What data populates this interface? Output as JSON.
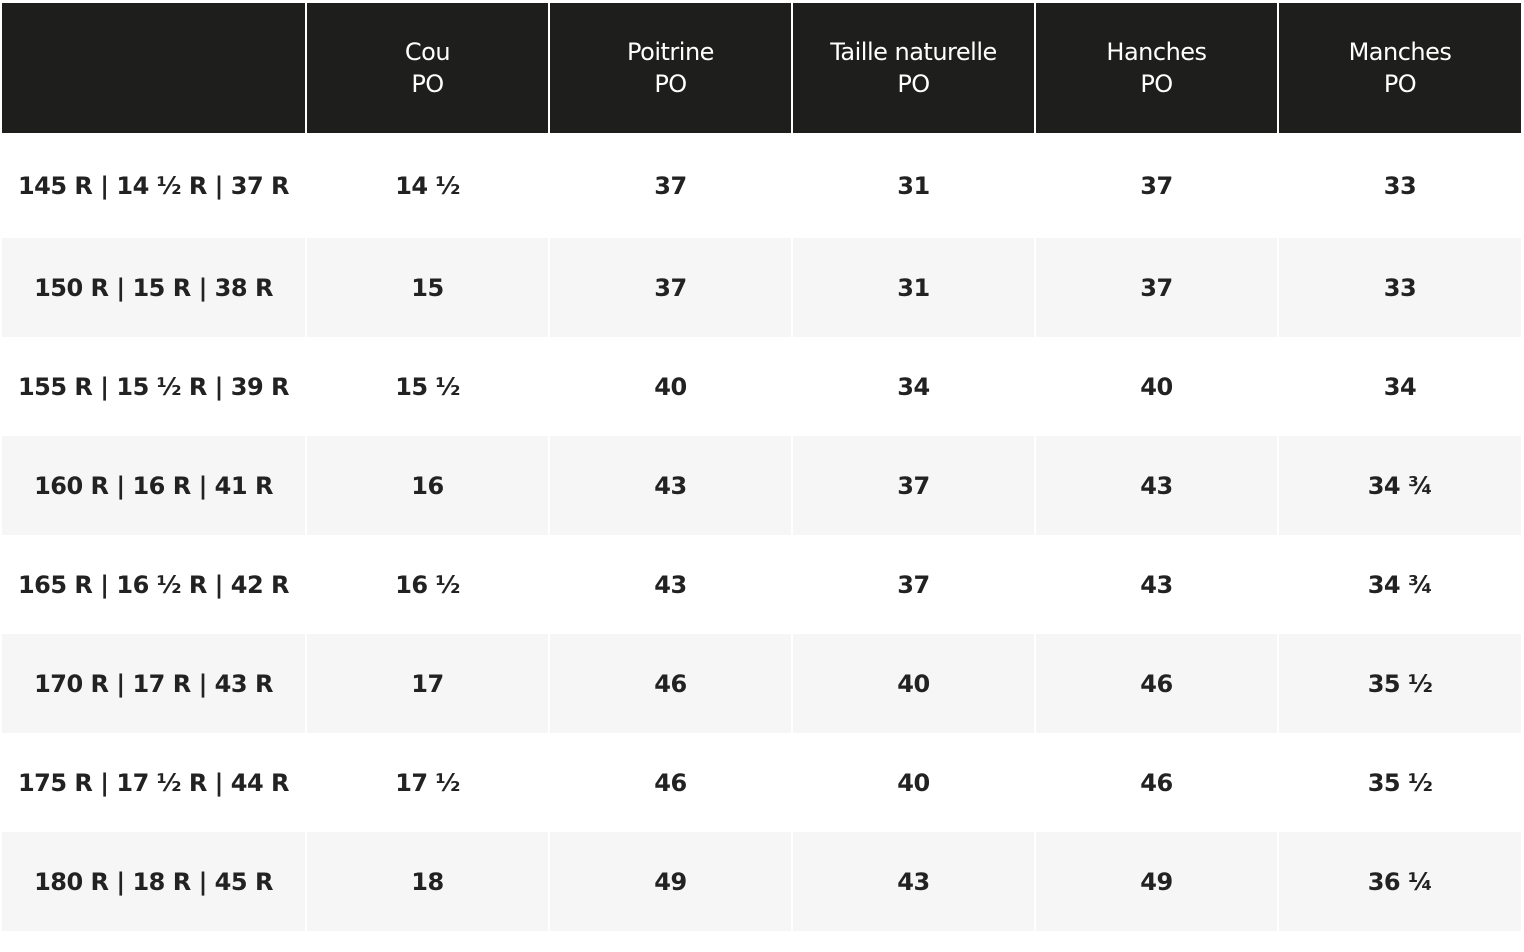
{
  "table": {
    "header": [
      [
        "Cou",
        "PO"
      ],
      [
        "Poitrine",
        "PO"
      ],
      [
        "Taille naturelle",
        "PO"
      ],
      [
        "Hanches",
        "PO"
      ],
      [
        "Manches",
        "PO"
      ]
    ],
    "rows": [
      [
        "145 R | 14 ½ R | 37 R",
        "14 ½",
        "37",
        "31",
        "37",
        "33"
      ],
      [
        "150 R | 15 R | 38 R",
        "15",
        "37",
        "31",
        "37",
        "33"
      ],
      [
        "155 R | 15 ½ R | 39 R",
        "15 ½",
        "40",
        "34",
        "40",
        "34"
      ],
      [
        "160 R | 16 R | 41 R",
        "16",
        "43",
        "37",
        "43",
        "34 ¾"
      ],
      [
        "165 R | 16 ½ R | 42 R",
        "16 ½",
        "43",
        "37",
        "43",
        "34 ¾"
      ],
      [
        "170 R | 17 R | 43 R",
        "17",
        "46",
        "40",
        "46",
        "35 ½"
      ],
      [
        "175 R | 17 ½ R | 44 R",
        "17 ½",
        "46",
        "40",
        "46",
        "35 ½"
      ],
      [
        "180 R | 18 R | 45 R",
        "18",
        "49",
        "43",
        "49",
        "36 ¼"
      ]
    ]
  }
}
